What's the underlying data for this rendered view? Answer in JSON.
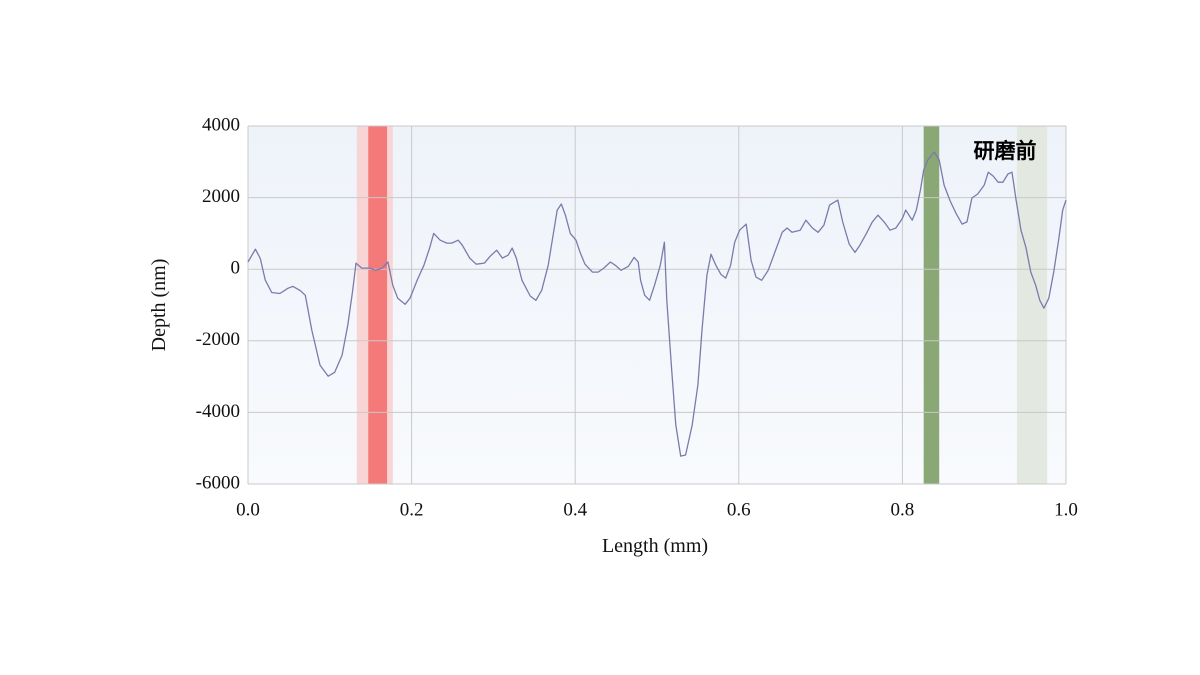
{
  "chart_data": {
    "type": "line",
    "xlabel": "Length (mm)",
    "ylabel": "Depth (nm)",
    "annotation": "研磨前",
    "color": "#7b7bab",
    "x": [
      0.0,
      0.009,
      0.015,
      0.021,
      0.029,
      0.039,
      0.049,
      0.055,
      0.064,
      0.07,
      0.078,
      0.088,
      0.098,
      0.106,
      0.115,
      0.122,
      0.128,
      0.132,
      0.139,
      0.149,
      0.156,
      0.164,
      0.171,
      0.177,
      0.183,
      0.192,
      0.198,
      0.207,
      0.215,
      0.222,
      0.227,
      0.235,
      0.243,
      0.249,
      0.257,
      0.262,
      0.271,
      0.279,
      0.289,
      0.296,
      0.304,
      0.311,
      0.318,
      0.323,
      0.328,
      0.335,
      0.345,
      0.352,
      0.359,
      0.367,
      0.373,
      0.378,
      0.383,
      0.388,
      0.394,
      0.401,
      0.406,
      0.412,
      0.421,
      0.428,
      0.435,
      0.443,
      0.449,
      0.456,
      0.465,
      0.472,
      0.477,
      0.48,
      0.485,
      0.491,
      0.497,
      0.504,
      0.509,
      0.512,
      0.518,
      0.523,
      0.529,
      0.535,
      0.543,
      0.55,
      0.555,
      0.561,
      0.566,
      0.572,
      0.578,
      0.584,
      0.59,
      0.595,
      0.601,
      0.609,
      0.615,
      0.621,
      0.628,
      0.636,
      0.644,
      0.653,
      0.659,
      0.665,
      0.675,
      0.682,
      0.69,
      0.697,
      0.704,
      0.711,
      0.721,
      0.727,
      0.735,
      0.742,
      0.748,
      0.756,
      0.763,
      0.77,
      0.778,
      0.785,
      0.792,
      0.8,
      0.804,
      0.812,
      0.817,
      0.822,
      0.826,
      0.831,
      0.839,
      0.845,
      0.851,
      0.858,
      0.866,
      0.873,
      0.879,
      0.885,
      0.892,
      0.9,
      0.905,
      0.911,
      0.917,
      0.923,
      0.929,
      0.934,
      0.939,
      0.945,
      0.951,
      0.957,
      0.963,
      0.968,
      0.973,
      0.979,
      0.985,
      0.991,
      0.996,
      1.0
    ],
    "values": [
      200,
      560,
      300,
      -300,
      -650,
      -680,
      -530,
      -480,
      -600,
      -730,
      -1700,
      -2680,
      -2990,
      -2880,
      -2400,
      -1560,
      -590,
      170,
      30,
      30,
      -30,
      30,
      200,
      -450,
      -810,
      -980,
      -810,
      -300,
      110,
      590,
      1000,
      810,
      730,
      730,
      810,
      670,
      310,
      140,
      170,
      360,
      530,
      310,
      390,
      590,
      310,
      -310,
      -750,
      -870,
      -590,
      110,
      950,
      1650,
      1820,
      1510,
      1000,
      810,
      470,
      140,
      -80,
      -80,
      30,
      200,
      110,
      -30,
      80,
      330,
      200,
      -310,
      -730,
      -870,
      -450,
      110,
      750,
      -870,
      -2820,
      -4350,
      -5220,
      -5190,
      -4350,
      -3230,
      -1700,
      -170,
      420,
      110,
      -140,
      -250,
      110,
      750,
      1090,
      1260,
      250,
      -220,
      -310,
      -30,
      470,
      1030,
      1150,
      1030,
      1090,
      1370,
      1150,
      1030,
      1230,
      1790,
      1930,
      1320,
      700,
      470,
      670,
      1000,
      1310,
      1510,
      1310,
      1090,
      1150,
      1420,
      1650,
      1370,
      1650,
      2210,
      2770,
      3050,
      3270,
      3050,
      2350,
      1930,
      1540,
      1260,
      1320,
      1990,
      2100,
      2350,
      2710,
      2600,
      2430,
      2430,
      2660,
      2710,
      1930,
      1090,
      610,
      -80,
      -450,
      -870,
      -1090,
      -810,
      -80,
      810,
      1650,
      1930
    ],
    "bands": [
      {
        "x": [
          0.133,
          0.177
        ],
        "color": "#f9d4d4"
      },
      {
        "x": [
          0.147,
          0.17
        ],
        "color": "#f47a7a"
      },
      {
        "x": [
          0.826,
          0.845
        ],
        "color": "#8aa876"
      },
      {
        "x": [
          0.94,
          0.977
        ],
        "color": "#e3e8e0"
      }
    ],
    "xlim": [
      0.0,
      1.0
    ],
    "ylim": [
      -6000,
      4000
    ],
    "xticks": [
      {
        "value": 0,
        "label": "0.0"
      },
      0.2,
      0.4,
      0.6,
      0.8,
      {
        "value": 1,
        "label": "1.0"
      }
    ],
    "yticks": [
      -6000,
      -4000,
      -2000,
      0,
      2000,
      4000
    ],
    "grid": true
  }
}
